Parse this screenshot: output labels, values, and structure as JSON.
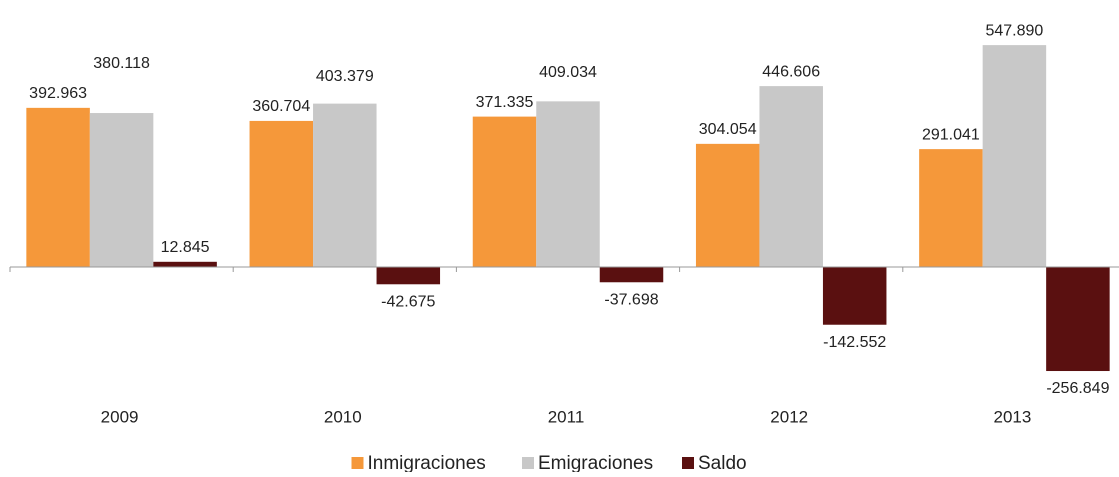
{
  "chart_data": {
    "type": "bar",
    "categories": [
      "2009",
      "2010",
      "2011",
      "2012",
      "2013"
    ],
    "series": [
      {
        "name": "Inmigraciones",
        "color": "#f5983a",
        "values": [
          392963,
          360704,
          371335,
          304054,
          291041
        ],
        "value_labels": [
          "392.963",
          "360.704",
          "371.335",
          "304.054",
          "291.041"
        ]
      },
      {
        "name": "Emigraciones",
        "color": "#c8c8c8",
        "values": [
          380118,
          403379,
          409034,
          446606,
          547890
        ],
        "value_labels": [
          "380.118",
          "403.379",
          "409.034",
          "446.606",
          "547.890"
        ]
      },
      {
        "name": "Saldo",
        "color": "#5a1010",
        "values": [
          12845,
          -42675,
          -37698,
          -142552,
          -256849
        ],
        "value_labels": [
          "12.845",
          "-42.675",
          "-37.698",
          "-142.552",
          "-256.849"
        ]
      }
    ],
    "ylim": [
      -300000,
      600000
    ],
    "legend": "bottom"
  }
}
